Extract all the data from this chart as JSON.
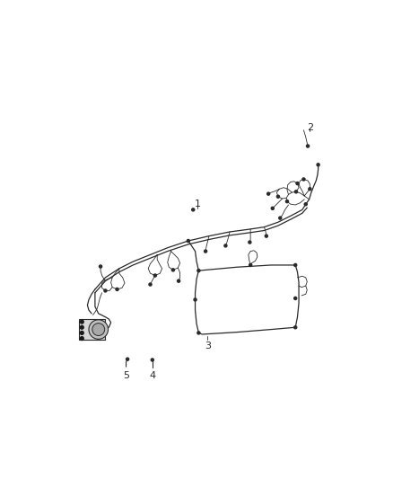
{
  "bg_color": "#ffffff",
  "line_color": "#2a2a2a",
  "label_color": "#222222",
  "label_fontsize": 8,
  "lw_main": 0.9,
  "lw_thin": 0.6
}
